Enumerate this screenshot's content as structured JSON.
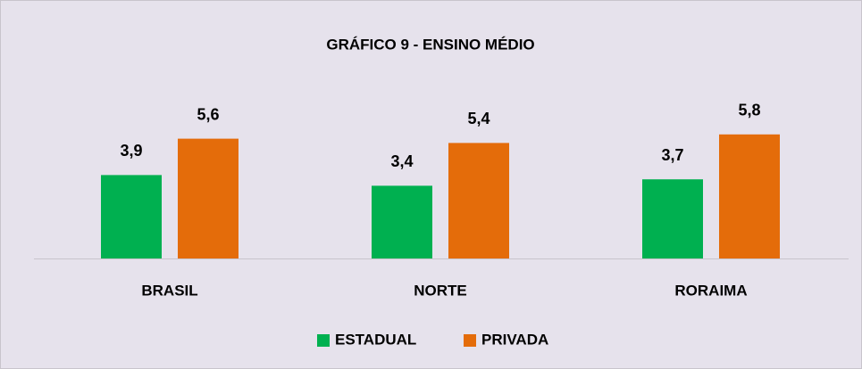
{
  "chart_data": {
    "type": "bar",
    "title": "GRÁFICO 9 - ENSINO MÉDIO",
    "categories": [
      "BRASIL",
      "NORTE",
      "RORAIMA"
    ],
    "series": [
      {
        "name": "ESTADUAL",
        "color": "#00b050",
        "values": [
          3.9,
          3.4,
          3.7
        ],
        "value_labels": [
          "3,9",
          "3,4",
          "3,7"
        ]
      },
      {
        "name": "PRIVADA",
        "color": "#e46c0a",
        "values": [
          5.6,
          5.4,
          5.8
        ],
        "value_labels": [
          "5,6",
          "5,4",
          "5,8"
        ]
      }
    ],
    "legend": "bottom"
  }
}
